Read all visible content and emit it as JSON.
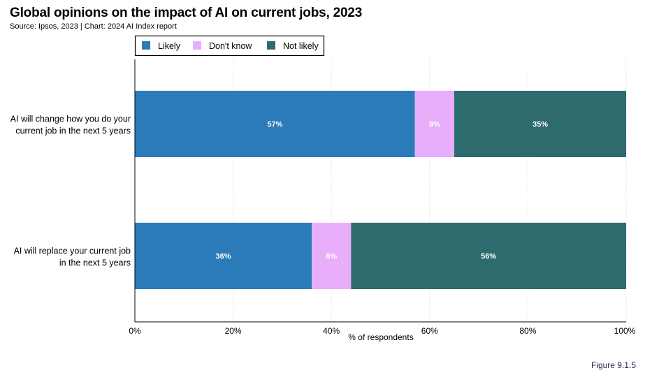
{
  "header": {
    "title": "Global opinions on the impact of AI on current jobs, 2023",
    "subtitle": "Source: Ipsos, 2023 | Chart: 2024 AI Index report"
  },
  "figure_label": "Figure 9.1.5",
  "chart_data": {
    "type": "bar",
    "orientation": "horizontal",
    "stacked": true,
    "categories": [
      [
        "AI will change how you do your",
        "current job in the next 5 years"
      ],
      [
        "AI will replace your current job",
        "in the next 5 years"
      ]
    ],
    "series": [
      {
        "name": "Likely",
        "color": "#2b7bba",
        "values": [
          57,
          36
        ]
      },
      {
        "name": "Don't know",
        "color": "#e8aefc",
        "values": [
          8,
          8
        ]
      },
      {
        "name": "Not likely",
        "color": "#2e6b6f",
        "values": [
          35,
          56
        ]
      }
    ],
    "value_labels": [
      [
        "57%",
        "36%"
      ],
      [
        "8%",
        "8%"
      ],
      [
        "35%",
        "56%"
      ]
    ],
    "xlabel": "% of respondents",
    "xlim": [
      0,
      100
    ],
    "xticks": [
      "0%",
      "20%",
      "40%",
      "60%",
      "80%",
      "100%"
    ],
    "grid": true,
    "legend_position": "top-left"
  }
}
